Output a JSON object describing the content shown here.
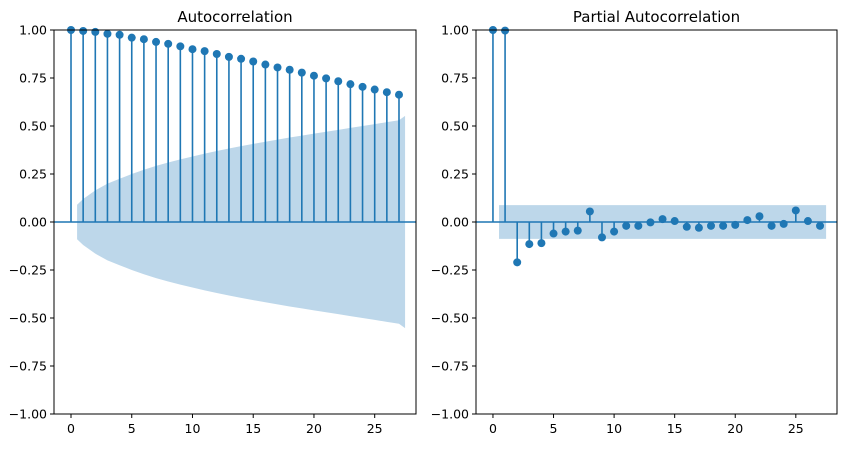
{
  "colors": {
    "stem": "#1f77b4",
    "band": "#bdd7ea"
  },
  "chart_data": [
    {
      "type": "stem",
      "title": "Autocorrelation",
      "xlabel": "",
      "ylabel": "",
      "xlim": [
        -1.4,
        28.4
      ],
      "ylim": [
        -1.0,
        1.0
      ],
      "xticks": [
        0,
        5,
        10,
        15,
        20,
        25
      ],
      "xtick_labels": [
        "0",
        "5",
        "10",
        "15",
        "20",
        "25"
      ],
      "yticks": [
        -1.0,
        -0.75,
        -0.5,
        -0.25,
        0.0,
        0.25,
        0.5,
        0.75,
        1.0
      ],
      "ytick_labels": [
        "−1.00",
        "−0.75",
        "−0.50",
        "−0.25",
        "0.00",
        "0.25",
        "0.50",
        "0.75",
        "1.00"
      ],
      "lags": [
        0,
        1,
        2,
        3,
        4,
        5,
        6,
        7,
        8,
        9,
        10,
        11,
        12,
        13,
        14,
        15,
        16,
        17,
        18,
        19,
        20,
        21,
        22,
        23,
        24,
        25,
        26,
        27
      ],
      "values": [
        1.0,
        0.995,
        0.99,
        0.98,
        0.975,
        0.96,
        0.952,
        0.938,
        0.928,
        0.915,
        0.9,
        0.89,
        0.875,
        0.86,
        0.85,
        0.836,
        0.82,
        0.805,
        0.793,
        0.778,
        0.762,
        0.748,
        0.733,
        0.718,
        0.704,
        0.69,
        0.676,
        0.663
      ],
      "confint": {
        "x": [
          0.5,
          1,
          2,
          3,
          4,
          5,
          6,
          7,
          8,
          9,
          10,
          11,
          12,
          13,
          14,
          15,
          16,
          17,
          18,
          19,
          20,
          21,
          22,
          23,
          24,
          25,
          26,
          27,
          27.5
        ],
        "upper": [
          0.09,
          0.12,
          0.165,
          0.2,
          0.225,
          0.25,
          0.272,
          0.292,
          0.31,
          0.326,
          0.341,
          0.356,
          0.37,
          0.383,
          0.395,
          0.407,
          0.418,
          0.429,
          0.44,
          0.45,
          0.46,
          0.47,
          0.48,
          0.49,
          0.5,
          0.51,
          0.52,
          0.53,
          0.553
        ]
      }
    },
    {
      "type": "stem",
      "title": "Partial Autocorrelation",
      "xlabel": "",
      "ylabel": "",
      "xlim": [
        -1.4,
        28.4
      ],
      "ylim": [
        -1.0,
        1.0
      ],
      "xticks": [
        0,
        5,
        10,
        15,
        20,
        25
      ],
      "xtick_labels": [
        "0",
        "5",
        "10",
        "15",
        "20",
        "25"
      ],
      "yticks": [
        -1.0,
        -0.75,
        -0.5,
        -0.25,
        0.0,
        0.25,
        0.5,
        0.75,
        1.0
      ],
      "ytick_labels": [
        "−1.00",
        "−0.75",
        "−0.50",
        "−0.25",
        "0.00",
        "0.25",
        "0.50",
        "0.75",
        "1.00"
      ],
      "lags": [
        0,
        1,
        2,
        3,
        4,
        5,
        6,
        7,
        8,
        9,
        10,
        11,
        12,
        13,
        14,
        15,
        16,
        17,
        18,
        19,
        20,
        21,
        22,
        23,
        24,
        25,
        26,
        27
      ],
      "values": [
        1.0,
        0.997,
        -0.21,
        -0.115,
        -0.11,
        -0.06,
        -0.05,
        -0.045,
        0.055,
        -0.08,
        -0.05,
        -0.02,
        -0.02,
        -0.002,
        0.015,
        0.005,
        -0.025,
        -0.03,
        -0.02,
        -0.02,
        -0.015,
        0.01,
        0.03,
        -0.02,
        -0.01,
        0.06,
        0.005,
        -0.02
      ],
      "confint": {
        "x": [
          0.5,
          27.5
        ],
        "upper": [
          0.088,
          0.088
        ]
      }
    }
  ]
}
